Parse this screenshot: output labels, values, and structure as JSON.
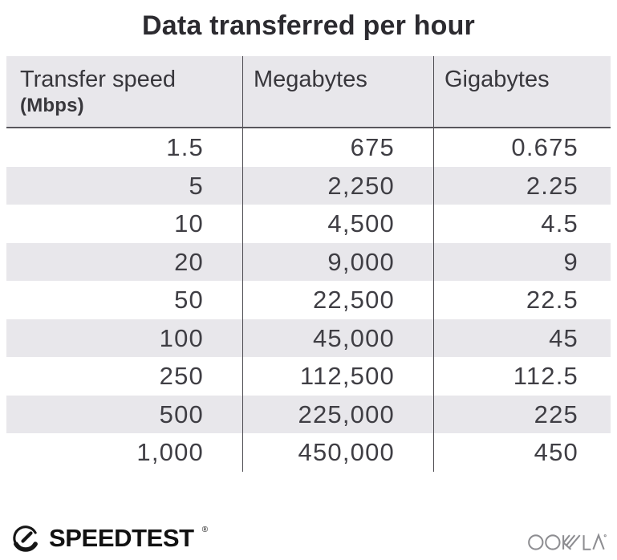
{
  "title": "Data transferred per hour",
  "table": {
    "columns": [
      {
        "label": "Transfer speed",
        "sublabel": "(Mbps)"
      },
      {
        "label": "Megabytes",
        "sublabel": ""
      },
      {
        "label": "Gigabytes",
        "sublabel": ""
      }
    ],
    "rows": [
      [
        "1.5",
        "675",
        "0.675"
      ],
      [
        "5",
        "2,250",
        "2.25"
      ],
      [
        "10",
        "4,500",
        "4.5"
      ],
      [
        "20",
        "9,000",
        "9"
      ],
      [
        "50",
        "22,500",
        "22.5"
      ],
      [
        "100",
        "45,000",
        "45"
      ],
      [
        "250",
        "112,500",
        "112.5"
      ],
      [
        "500",
        "225,000",
        "225"
      ],
      [
        "1,000",
        "450,000",
        "450"
      ]
    ]
  },
  "chart_data": {
    "type": "table",
    "title": "Data transferred per hour",
    "columns": [
      "Transfer speed (Mbps)",
      "Megabytes",
      "Gigabytes"
    ],
    "rows": [
      [
        1.5,
        675,
        0.675
      ],
      [
        5,
        2250,
        2.25
      ],
      [
        10,
        4500,
        4.5
      ],
      [
        20,
        9000,
        9
      ],
      [
        50,
        22500,
        22.5
      ],
      [
        100,
        45000,
        45
      ],
      [
        250,
        112500,
        112.5
      ],
      [
        500,
        225000,
        225
      ],
      [
        1000,
        450000,
        450
      ]
    ],
    "layout_hints": {
      "striped_rows": true,
      "stripe_color": "#e8e7eb",
      "column_dividers": true,
      "values_right_aligned": true
    }
  },
  "footer": {
    "speedtest": {
      "label": "SPEEDTEST",
      "trademark": "®",
      "icon": "speedtest-gauge-icon"
    },
    "ookla": {
      "label": "OOKLA",
      "trademark": "®",
      "icon": "ookla-wordmark-icon"
    }
  },
  "colors": {
    "header_bg": "#e8e7eb",
    "row_alt_bg": "#e8e7eb",
    "divider": "#4c4a50",
    "header_border": "#59575c",
    "title_text": "#2c2b30",
    "cell_text": "#3f3e44",
    "speedtest_text": "#121212",
    "ookla_text": "#8d8d91"
  }
}
